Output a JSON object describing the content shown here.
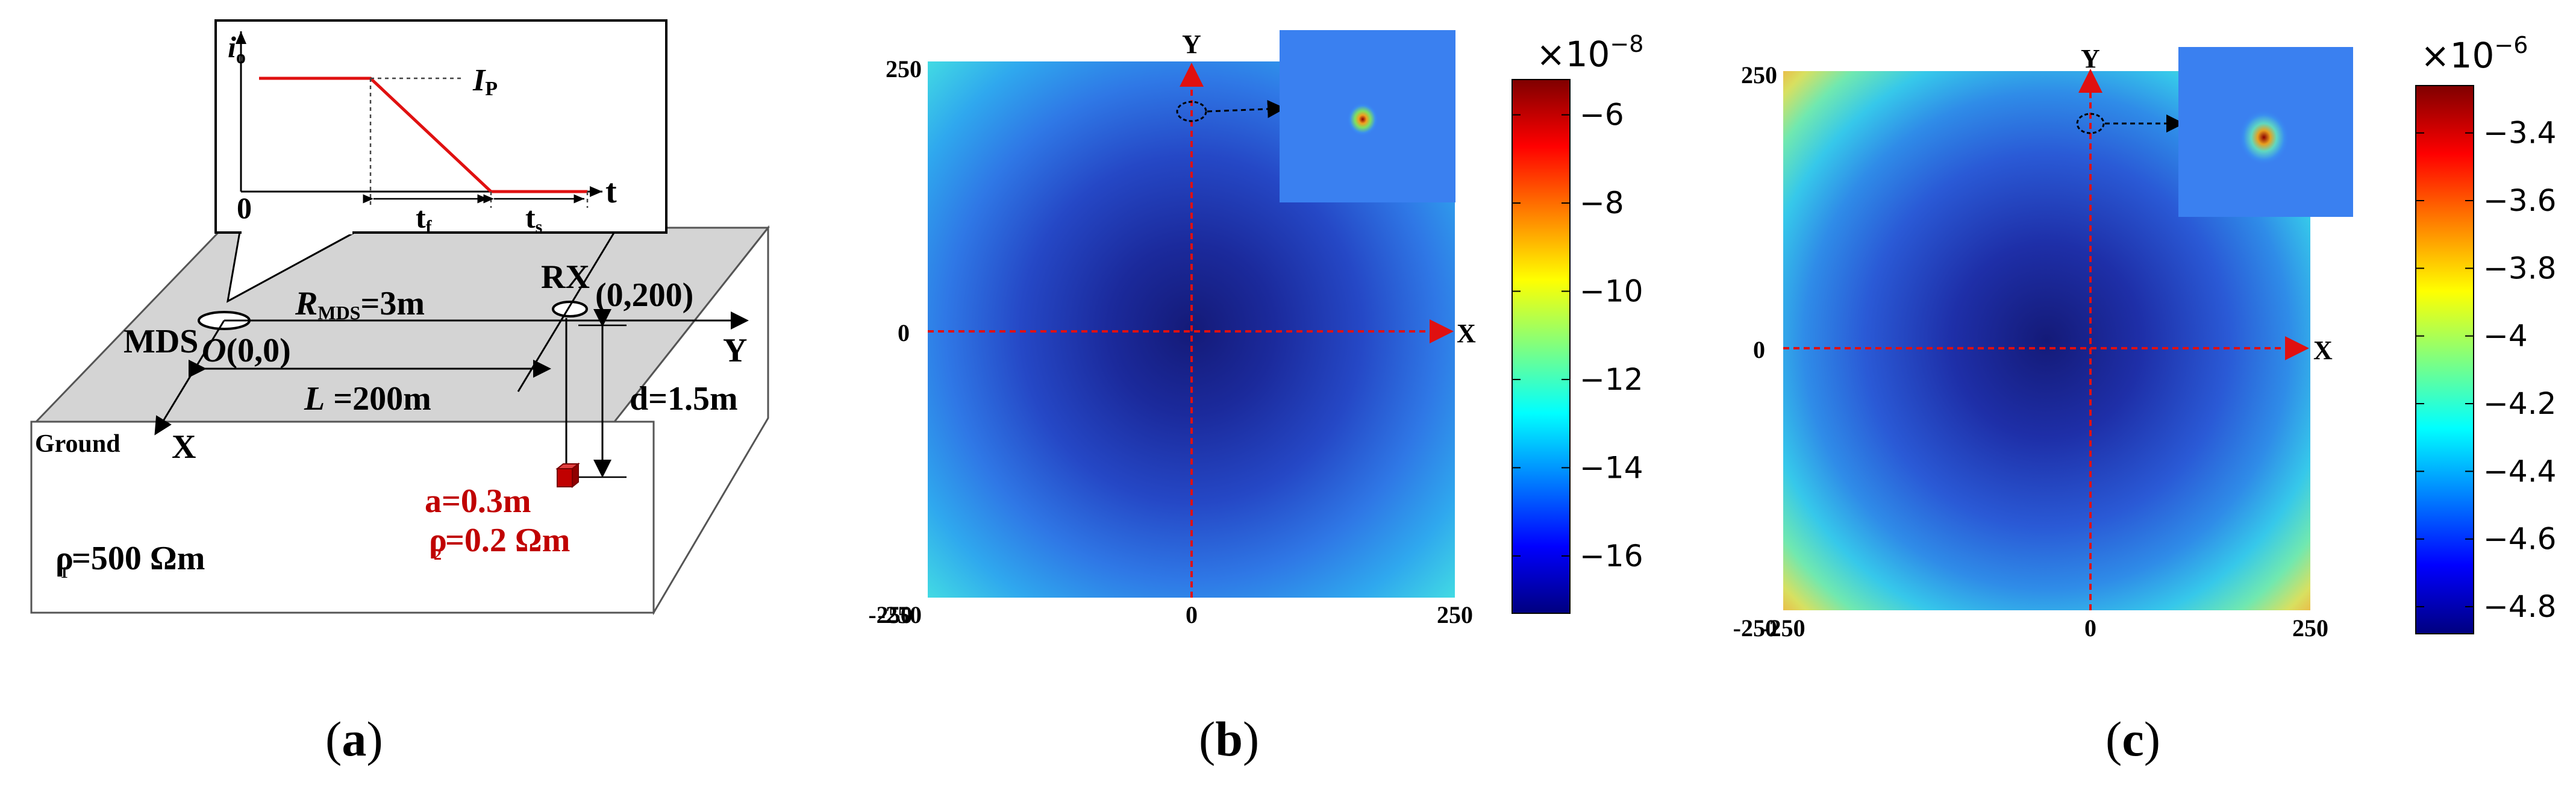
{
  "panel_a": {
    "caption_open": "(",
    "caption_letter": "a",
    "caption_close": ")",
    "inset": {
      "y_label_main": "i",
      "y_label_sub": "o",
      "ip_main": "I",
      "ip_sub": "P",
      "origin": "0",
      "t_axis": "t",
      "tf_main": "t",
      "tf_sub": "f",
      "ts_main": "t",
      "ts_sub": "s"
    },
    "mds": "MDS",
    "origin_label": "O",
    "origin_coord": "(0,0)",
    "r_main": "R",
    "r_sub": "MDS",
    "r_value": "=3m",
    "rx": "RX",
    "rx_coord": "(0,200)",
    "y_axis": "Y",
    "x_axis": "X",
    "l_main": "L",
    "l_value": " =200m",
    "d_value": "d=1.5m",
    "ground": "Ground",
    "a_value": "a=0.3m",
    "rho2_main": "ρ",
    "rho2_sub": "2",
    "rho2_value": "=0.2 Ωm",
    "rho1_main": "ρ",
    "rho1_sub": "1",
    "rho1_value": "=500 Ωm",
    "colors": {
      "wave": "#e01010",
      "annotation": "#c00000",
      "ground_top": "#d4d4d4"
    }
  },
  "panel_b": {
    "caption_open": "(",
    "caption_letter": "b",
    "caption_close": ")",
    "x_axis": "X",
    "y_axis": "Y",
    "ticks": {
      "top": "250",
      "mid": "0",
      "bottom": "-250",
      "x_left": "-250",
      "x_mid": "0",
      "x_right": "250"
    },
    "colorbar": {
      "exponent_prefix": "×10",
      "exponent": "−8",
      "ticks": [
        "−6",
        "−8",
        "−10",
        "−12",
        "−14",
        "−16"
      ],
      "range": [
        -17.3,
        -5.2
      ]
    }
  },
  "panel_c": {
    "caption_open": "(",
    "caption_letter": "c",
    "caption_close": ")",
    "x_axis": "X",
    "y_axis": "Y",
    "ticks": {
      "top": "250",
      "mid": "0",
      "bottom": "-250",
      "x_left": "-250",
      "x_mid": "0",
      "x_right": "250"
    },
    "colorbar": {
      "exponent_prefix": "×10",
      "exponent": "−6",
      "ticks": [
        "−3.4",
        "−3.6",
        "−3.8",
        "−4",
        "−4.2",
        "−4.4",
        "−4.6",
        "−4.8"
      ],
      "range": [
        -4.88,
        -3.26
      ]
    }
  }
}
